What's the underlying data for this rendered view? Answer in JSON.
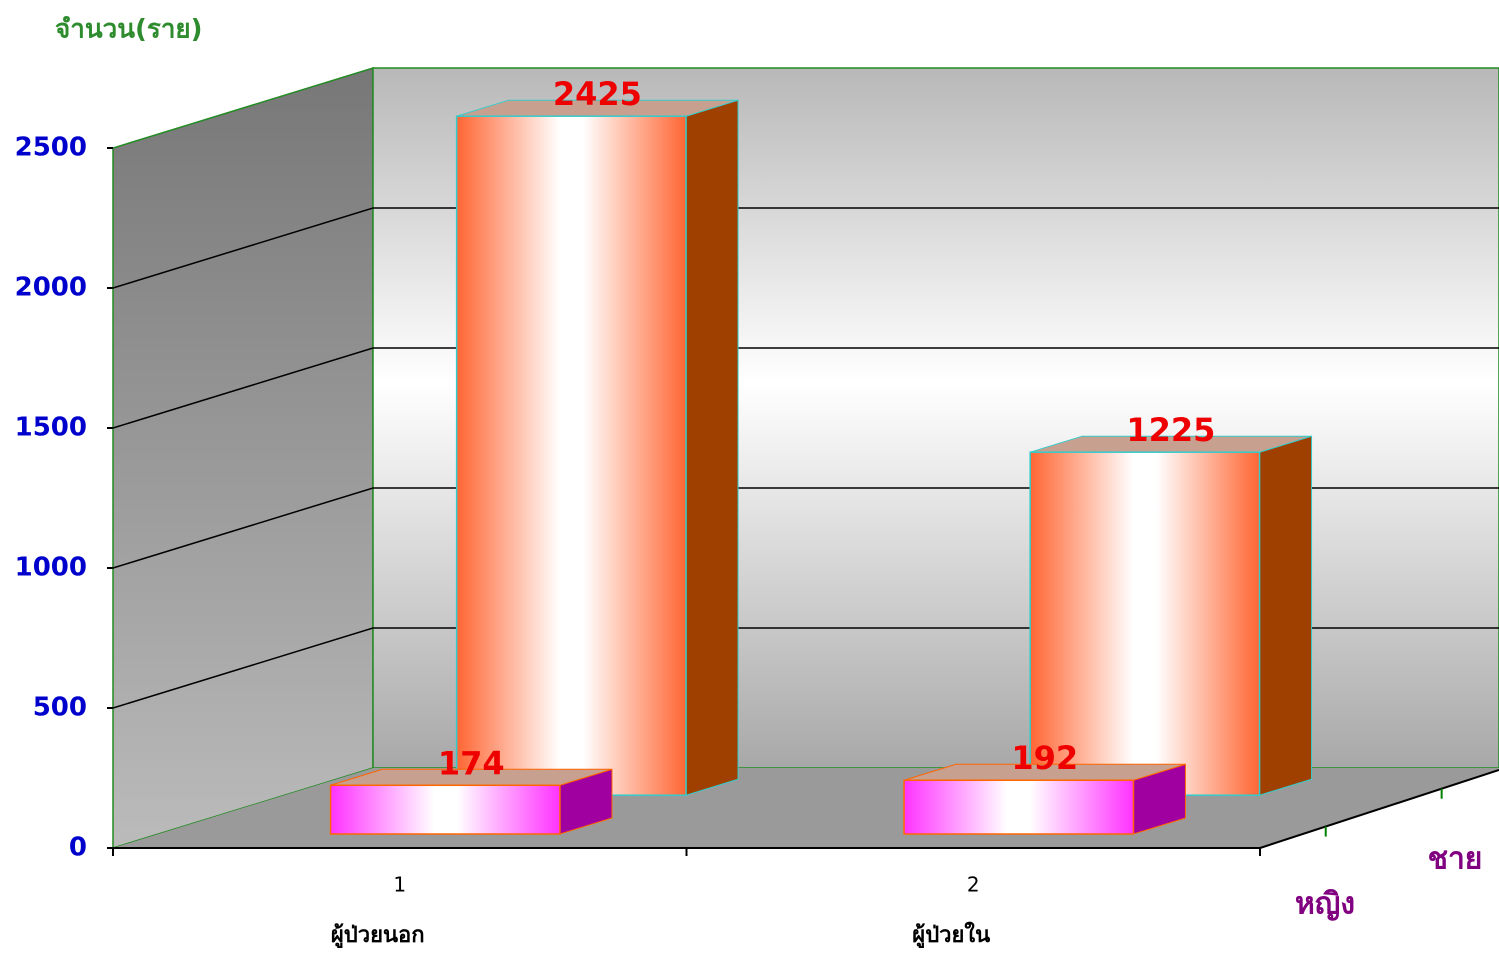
{
  "chart_data": {
    "type": "bar3d",
    "y_axis_label": "จำนวน(ราย)",
    "category_numbers": [
      "1",
      "2"
    ],
    "categories": [
      "ผู้ป่วยนอก",
      "ผู้ป่วยใน"
    ],
    "series": [
      {
        "name": "ชาย",
        "color": "#ff6633",
        "values": [
          2425,
          1225
        ]
      },
      {
        "name": "หญิง",
        "color": "#ff33ff",
        "values": [
          174,
          192
        ]
      }
    ],
    "ylim": [
      0,
      2500
    ],
    "yticks": [
      0,
      500,
      1000,
      1500,
      2000,
      2500
    ],
    "grid": true
  }
}
